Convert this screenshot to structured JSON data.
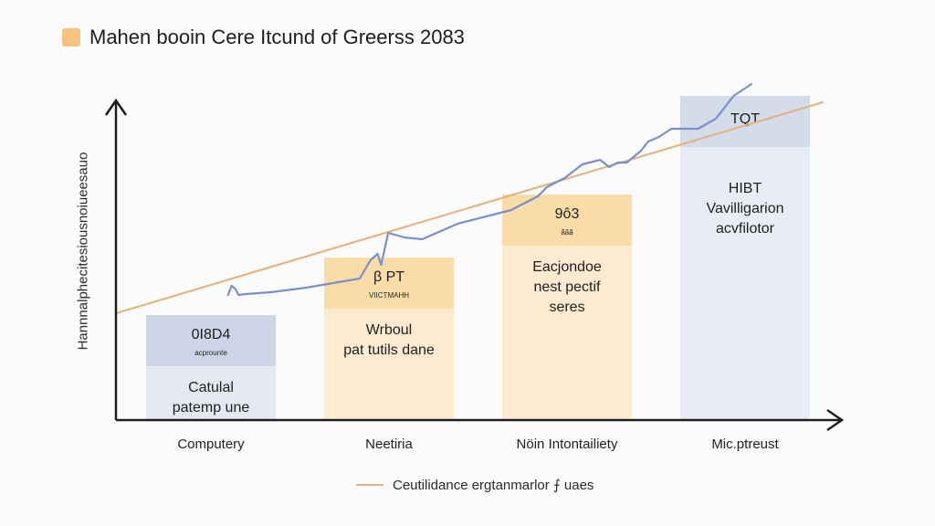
{
  "chart_data": {
    "type": "bar",
    "title": "Mahen booin Cere Itcund of Greerss 2083",
    "ylabel": "Hannnalphecitesiousnoiueesauo",
    "xlabel": "",
    "categories": [
      "Computery",
      "Neetiria",
      "Nöin Intontailiety",
      "Mic.ptreust"
    ],
    "values": [
      115,
      178,
      247,
      355
    ],
    "ylim": [
      0,
      355
    ],
    "bar_colors": [
      "#e3e8f1",
      "#fcebd0",
      "#fcebd0",
      "#e8ecf4"
    ],
    "header_colors": [
      "#ccd5e6",
      "#f9dca8",
      "#f9dca8",
      "#d4dbe9"
    ],
    "bar_labels": [
      {
        "header": [
          "0I8D4",
          "acprounte"
        ],
        "body": [
          "Catulal",
          "patemp une"
        ]
      },
      {
        "header": [
          "β PT",
          "VIICTMAHH"
        ],
        "body": [
          "Wrboul",
          "pat tutils dane"
        ]
      },
      {
        "header": [
          "9ô3",
          "ããã"
        ],
        "body": [
          "Eacjondoe",
          "nest pectif",
          "seres"
        ]
      },
      {
        "header": [
          "TQT"
        ],
        "body": [
          "HIBT",
          "Vavilligarion",
          "acvfilotor"
        ]
      }
    ],
    "series": [
      {
        "name": "Ceutilidance ergtanmarlor ⨍ uaes",
        "type": "trend",
        "color": "#e5b07a",
        "x": [
          0,
          3.8
        ],
        "values": [
          117,
          348
        ]
      },
      {
        "name": "",
        "type": "line",
        "color": "#7b90c8",
        "x": [
          0.46,
          0.48,
          0.5,
          0.52,
          0.56,
          0.7,
          0.9,
          1.2,
          1.26,
          1.3,
          1.32,
          1.36,
          1.45,
          1.55,
          1.75,
          1.95,
          2.05,
          2.2,
          2.25,
          2.35,
          2.45,
          2.55,
          2.6,
          2.65,
          2.7,
          2.78,
          2.82,
          2.88,
          2.95,
          3.1,
          3.2,
          3.3,
          3.4
        ],
        "values": [
          137,
          147,
          144,
          137,
          138,
          140,
          145,
          155,
          175,
          182,
          170,
          205,
          200,
          198,
          215,
          225,
          230,
          245,
          255,
          265,
          280,
          285,
          277,
          282,
          282,
          295,
          305,
          310,
          319,
          319,
          330,
          355,
          368
        ]
      }
    ],
    "grid": false,
    "legend_placement": "bottom"
  }
}
